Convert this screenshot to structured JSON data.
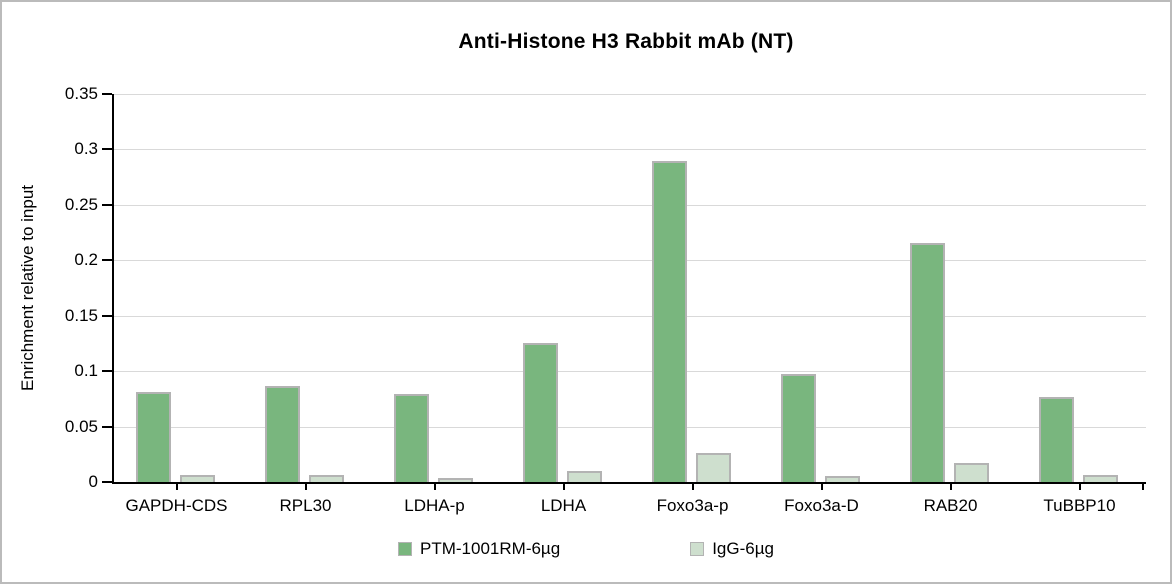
{
  "chart_data": {
    "type": "bar",
    "title": "Anti-Histone H3 Rabbit mAb (NT)",
    "xlabel": "",
    "ylabel": "Enrichment relative to input",
    "categories": [
      "GAPDH-CDS",
      "RPL30",
      "LDHA-p",
      "LDHA",
      "Foxo3a-p",
      "Foxo3a-D",
      "RAB20",
      "TuBBP10"
    ],
    "series": [
      {
        "name": "PTM-1001RM-6µg",
        "color": "#79B67E",
        "values": [
          0.081,
          0.087,
          0.079,
          0.125,
          0.29,
          0.097,
          0.216,
          0.077
        ]
      },
      {
        "name": "IgG-6µg",
        "color": "#CEDFCE",
        "values": [
          0.006,
          0.006,
          0.004,
          0.01,
          0.026,
          0.005,
          0.017,
          0.006
        ]
      }
    ],
    "ylim": [
      0,
      0.35
    ],
    "ytick_step": 0.05,
    "ytick_labels": [
      "0",
      "0.05",
      "0.1",
      "0.15",
      "0.2",
      "0.25",
      "0.3",
      "0.35"
    ],
    "grid": true,
    "legend_position": "bottom"
  },
  "colors": {
    "bar_border": "#B3B3B3",
    "gridline": "#D9D9D9",
    "axis": "#000000",
    "frame_border": "#BBBBBB",
    "text": "#000000"
  }
}
